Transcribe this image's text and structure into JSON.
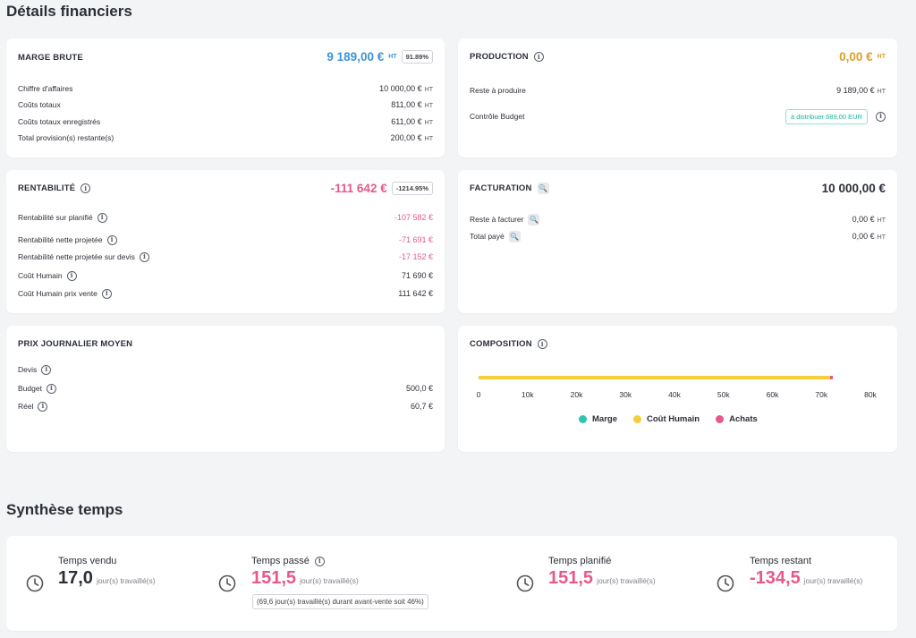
{
  "page": {
    "title": "Détails financiers",
    "section2_title": "Synthèse temps"
  },
  "colors": {
    "blue": "#3b94db",
    "pink": "#e8588a",
    "gold": "#d8a12a",
    "teal": "#1bb79d",
    "marge": "#2ec5b2",
    "cout_humain": "#f3cf3c",
    "achats": "#e8588a"
  },
  "marge_brute": {
    "title": "MARGE BRUTE",
    "value": "9 189,00 €",
    "ht": "HT",
    "pct": "91.89%",
    "rows": [
      {
        "label": "Chiffre d'affaires",
        "value": "10 000,00 €",
        "ht": "HT"
      },
      {
        "label": "Coûts totaux",
        "value": "811,00 €",
        "ht": "HT"
      },
      {
        "label": "Coûts totaux enregistrés",
        "value": "611,00 €",
        "ht": "HT"
      },
      {
        "label": "Total provision(s) restante(s)",
        "value": "200,00 €",
        "ht": "HT"
      }
    ]
  },
  "production": {
    "title": "PRODUCTION",
    "value": "0,00 €",
    "ht": "HT",
    "reste_label": "Reste à produire",
    "reste_value": "9 189,00 €",
    "reste_ht": "HT",
    "controle_label": "Contrôle Budget",
    "controle_badge": "à distribuer 689,00 EUR"
  },
  "rentabilite": {
    "title": "RENTABILITÉ",
    "value": "-111 642 €",
    "pct": "-1214.95%",
    "rows": [
      {
        "label": "Rentabilité sur planifié",
        "value": "-107 582 €"
      },
      {
        "label": "Rentabilité nette projetée",
        "value": "-71 691 €"
      },
      {
        "label": "Rentabilité nette projetée sur devis",
        "value": "-17 152 €"
      },
      {
        "label": "Coût Humain",
        "value": "71 690 €"
      },
      {
        "label": "Coût Humain prix vente",
        "value": "111 642 €"
      }
    ]
  },
  "facturation": {
    "title": "FACTURATION",
    "value": "10 000,00 €",
    "rows": [
      {
        "label": "Reste à facturer",
        "value": "0,00 €",
        "ht": "HT"
      },
      {
        "label": "Total payé",
        "value": "0,00 €",
        "ht": "HT"
      }
    ]
  },
  "prix_journalier": {
    "title": "PRIX JOURNALIER MOYEN",
    "rows": [
      {
        "label": "Devis",
        "value": ""
      },
      {
        "label": "Budget",
        "value": "500,0 €"
      },
      {
        "label": "Réel",
        "value": "60,7 €"
      }
    ]
  },
  "composition": {
    "title": "COMPOSITION",
    "legend": [
      "Marge",
      "Coût Humain",
      "Achats"
    ]
  },
  "chart_data": {
    "type": "bar",
    "orientation": "horizontal-stacked",
    "categories": [
      "Composition"
    ],
    "series": [
      {
        "name": "Marge",
        "values": [
          0
        ]
      },
      {
        "name": "Coût Humain",
        "values": [
          71690
        ]
      },
      {
        "name": "Achats",
        "values": [
          611
        ]
      }
    ],
    "xlim": [
      0,
      80000
    ],
    "x_ticks": [
      "0",
      "10k",
      "20k",
      "30k",
      "40k",
      "50k",
      "60k",
      "70k",
      "80k"
    ],
    "legend_position": "bottom"
  },
  "synthese": {
    "unit": "jour(s) travaillé(s)",
    "vendu_title": "Temps vendu",
    "vendu_value": "17,0",
    "passe_title": "Temps passé",
    "passe_value": "151,5",
    "passe_note": "(69,6 jour(s) travaillé(s) durant avant-vente soit 46%)",
    "planifie_title": "Temps planifié",
    "planifie_value": "151,5",
    "restant_title": "Temps restant",
    "restant_value": "-134,5"
  }
}
